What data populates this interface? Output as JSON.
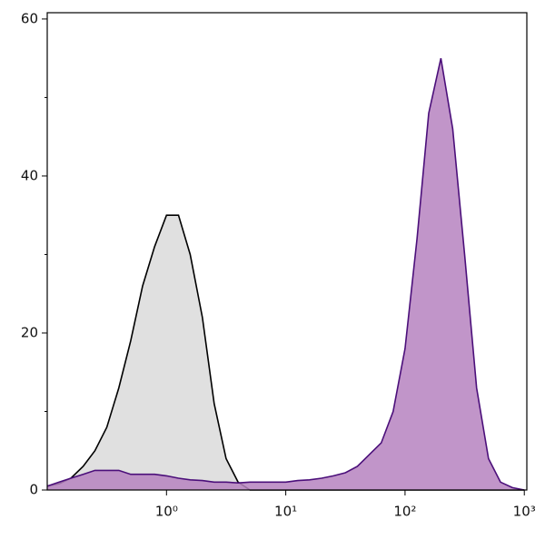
{
  "chart_data": {
    "type": "histogram-log",
    "xlog": true,
    "xlim": [
      0.1,
      1050
    ],
    "ylim": [
      0,
      60.8
    ],
    "xticks": [
      {
        "value": 1,
        "label": "10⁰"
      },
      {
        "value": 10,
        "label": "10¹"
      },
      {
        "value": 100,
        "label": "10²"
      },
      {
        "value": 1000,
        "label": "10³"
      }
    ],
    "yticks": [
      0,
      20,
      40,
      60
    ],
    "yticks_minor": [
      10,
      30,
      50
    ],
    "x": [
      0.1,
      0.126,
      0.158,
      0.2,
      0.251,
      0.316,
      0.398,
      0.501,
      0.631,
      0.794,
      1,
      1.26,
      1.58,
      2,
      2.51,
      3.16,
      3.98,
      5.01,
      6.31,
      7.94,
      10,
      12.6,
      15.8,
      20,
      25.1,
      31.6,
      39.8,
      50.1,
      63.1,
      79.4,
      100,
      126,
      158,
      200,
      251,
      316,
      398,
      501,
      631,
      794,
      1000
    ],
    "series": [
      {
        "color": "#000000",
        "fill": "#e0e0e0",
        "values": [
          0.5,
          0.8,
          1.5,
          3,
          5,
          8,
          13,
          19,
          26,
          31,
          35,
          35,
          30,
          22,
          11,
          4,
          1,
          0,
          0,
          0,
          0,
          0,
          0,
          0,
          0,
          0,
          0,
          0,
          0,
          0,
          0,
          0,
          0,
          0,
          0,
          0,
          0,
          0,
          0,
          0,
          0
        ]
      },
      {
        "color": "#4b0f7a",
        "fill": "#b683bf",
        "values": [
          0.5,
          1,
          1.5,
          2,
          2.5,
          2.5,
          2.5,
          2,
          2,
          2,
          1.8,
          1.5,
          1.3,
          1.2,
          1,
          1,
          0.9,
          1,
          1,
          1,
          1,
          1.2,
          1.3,
          1.5,
          1.8,
          2.2,
          3,
          4.5,
          6,
          10,
          18,
          32,
          48,
          55,
          46,
          30,
          13,
          4,
          1,
          0.3,
          0
        ]
      }
    ]
  }
}
